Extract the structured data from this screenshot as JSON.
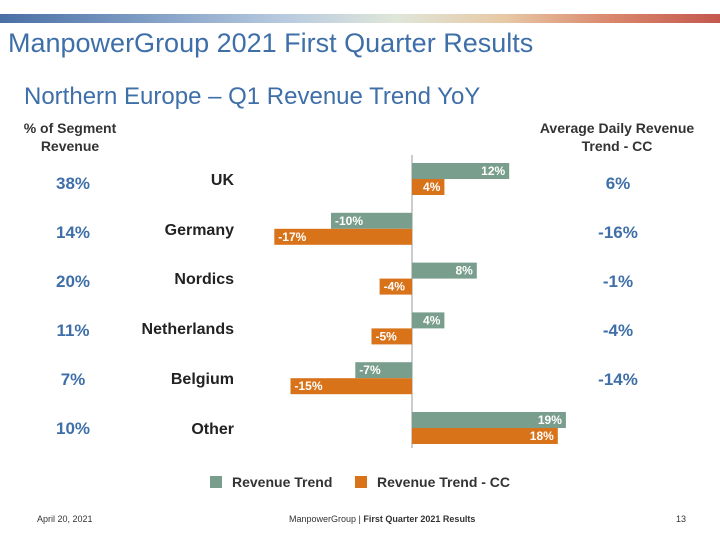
{
  "header": {
    "title": "ManpowerGroup 2021 First Quarter Results",
    "subtitle": "Northern Europe – Q1 Revenue Trend YoY"
  },
  "columns": {
    "left_header": "% of Segment Revenue",
    "right_header": "Average Daily Revenue Trend - CC"
  },
  "rows": [
    {
      "category": "UK",
      "segment_share": "38%",
      "daily_trend": "6%"
    },
    {
      "category": "Germany",
      "segment_share": "14%",
      "daily_trend": "-16%"
    },
    {
      "category": "Nordics",
      "segment_share": "20%",
      "daily_trend": "-1%"
    },
    {
      "category": "Netherlands",
      "segment_share": "11%",
      "daily_trend": "-4%"
    },
    {
      "category": "Belgium",
      "segment_share": "7%",
      "daily_trend": "-14%"
    },
    {
      "category": "Other",
      "segment_share": "10%",
      "daily_trend": ""
    }
  ],
  "chart_data": {
    "type": "bar",
    "orientation": "horizontal",
    "categories": [
      "UK",
      "Germany",
      "Nordics",
      "Netherlands",
      "Belgium",
      "Other"
    ],
    "series": [
      {
        "name": "Revenue Trend",
        "color": "#7a9e8e",
        "values": [
          12,
          -10,
          8,
          4,
          -7,
          19
        ],
        "labels": [
          "12%",
          "-10%",
          "8%",
          "4%",
          "-7%",
          "19%"
        ]
      },
      {
        "name": "Revenue Trend - CC",
        "color": "#d9731a",
        "values": [
          4,
          -17,
          -4,
          -5,
          -15,
          18
        ],
        "labels": [
          "4%",
          "-17%",
          "-4%",
          "-5%",
          "-15%",
          "18%"
        ]
      }
    ],
    "legend_position": "bottom",
    "grid": false
  },
  "footer": {
    "date": "April 20, 2021",
    "company": "ManpowerGroup",
    "separator": " | ",
    "report": "First Quarter 2021 Results",
    "page": "13"
  }
}
